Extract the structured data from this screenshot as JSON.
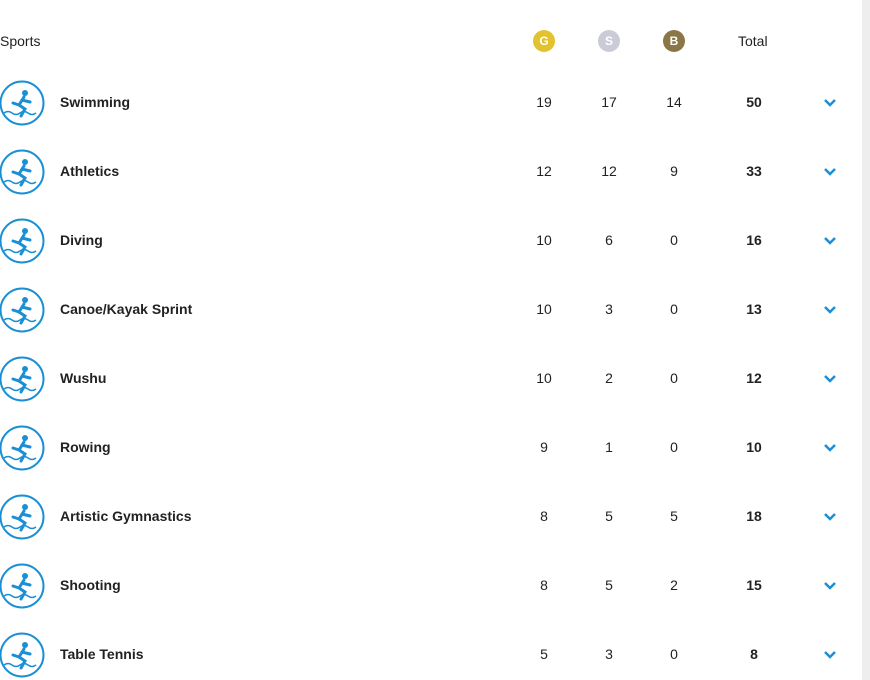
{
  "header": {
    "sports": "Sports",
    "gold": "G",
    "silver": "S",
    "bronze": "B",
    "total": "Total"
  },
  "table": {
    "rows": [
      {
        "sport": "Swimming",
        "gold": 19,
        "silver": 17,
        "bronze": 14,
        "total": 50
      },
      {
        "sport": "Athletics",
        "gold": 12,
        "silver": 12,
        "bronze": 9,
        "total": 33
      },
      {
        "sport": "Diving",
        "gold": 10,
        "silver": 6,
        "bronze": 0,
        "total": 16
      },
      {
        "sport": "Canoe/Kayak Sprint",
        "gold": 10,
        "silver": 3,
        "bronze": 0,
        "total": 13
      },
      {
        "sport": "Wushu",
        "gold": 10,
        "silver": 2,
        "bronze": 0,
        "total": 12
      },
      {
        "sport": "Rowing",
        "gold": 9,
        "silver": 1,
        "bronze": 0,
        "total": 10
      },
      {
        "sport": "Artistic Gymnastics",
        "gold": 8,
        "silver": 5,
        "bronze": 5,
        "total": 18
      },
      {
        "sport": "Shooting",
        "gold": 8,
        "silver": 5,
        "bronze": 2,
        "total": 15
      },
      {
        "sport": "Table Tennis",
        "gold": 5,
        "silver": 3,
        "bronze": 0,
        "total": 8
      }
    ]
  }
}
